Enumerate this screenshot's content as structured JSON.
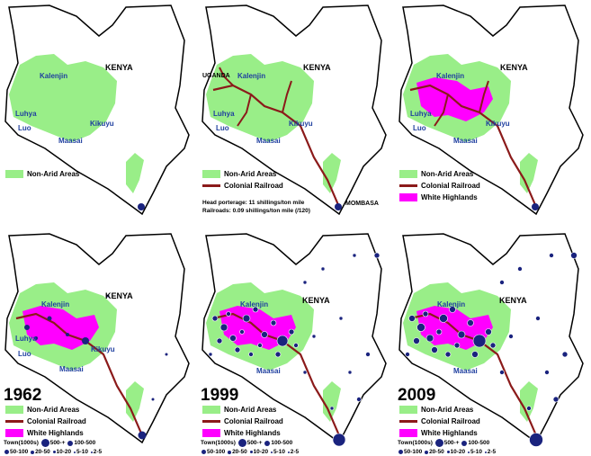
{
  "country_label": "KENYA",
  "regions": {
    "kalenjin": "Kalenjin",
    "luhya": "Luhya",
    "luo": "Luo",
    "kikuyu": "Kikuyu",
    "maasai": "Maasai"
  },
  "places": {
    "uganda": "UGANDA",
    "mombasa": "MOMBASA"
  },
  "legend": {
    "non_arid": "Non-Arid Areas",
    "railroad": "Colonial Railroad",
    "highlands": "White Highlands"
  },
  "note": {
    "line1": "Head porterage: 11 shillings/ton mile",
    "line2": "Railroads: 0.09 shillings/ton mile (/120)"
  },
  "years": {
    "p4": "1962",
    "p5": "1999",
    "p6": "2009"
  },
  "towns_legend": {
    "title": "Town(1000s)",
    "row1": [
      "500-+",
      "100-500"
    ],
    "row2": [
      "50-100",
      "20-50",
      "10-20",
      "5-10",
      "2-5"
    ]
  },
  "colors": {
    "non_arid": "#99ee88",
    "railroad": "#8b1a1a",
    "highlands": "#ff00ff",
    "towns": "#1a237e",
    "label": "#1f3f9f"
  }
}
